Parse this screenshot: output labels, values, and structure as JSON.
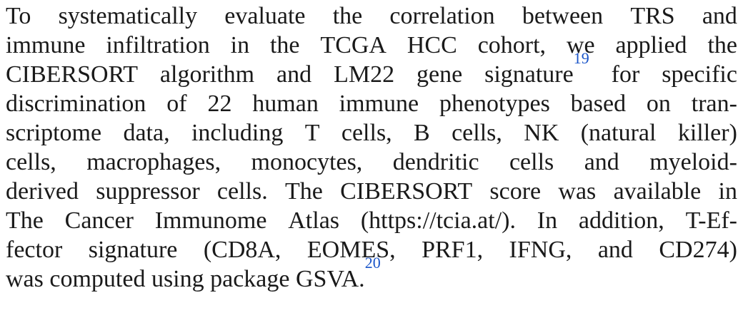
{
  "paragraph": {
    "lines": [
      {
        "words": [
          "To",
          "systematically",
          "evaluate",
          "the",
          "correlation",
          "between",
          "TRS",
          "and"
        ],
        "justify": true
      },
      {
        "words": [
          "immune",
          "infiltration",
          "in",
          "the",
          "TCGA",
          "HCC",
          "cohort,",
          "we",
          "applied",
          "the"
        ],
        "justify": true
      },
      {
        "words": [
          "CIBERSORT",
          "algorithm",
          "and",
          "LM22",
          "gene",
          "signature",
          "for",
          "specific"
        ],
        "ref_after_index": 5,
        "ref": "19",
        "justify": true
      },
      {
        "words": [
          "discrimination",
          "of",
          "22",
          "human",
          "immune",
          "phenotypes",
          "based",
          "on",
          "tran-"
        ],
        "justify": true
      },
      {
        "words": [
          "scriptome",
          "data,",
          "including",
          "T",
          "cells,",
          "B",
          "cells,",
          "NK",
          "(natural",
          "killer)"
        ],
        "justify": true
      },
      {
        "words": [
          "cells,",
          "macrophages,",
          "monocytes,",
          "dendritic",
          "cells",
          "and",
          "myeloid-"
        ],
        "justify": true
      },
      {
        "words": [
          "derived",
          "suppressor",
          "cells.",
          "The",
          "CIBERSORT",
          "score",
          "was",
          "available",
          "in"
        ],
        "justify": true
      },
      {
        "words": [
          "The",
          "Cancer",
          "Immunome",
          "Atlas",
          "(https://tcia.at/).",
          "In",
          "addition,",
          "T-Ef-"
        ],
        "justify": true
      },
      {
        "words": [
          "fector",
          "signature",
          "(CD8A,",
          "EOMES,",
          "PRF1,",
          "IFNG,",
          "and",
          "CD274)"
        ],
        "justify": true
      }
    ],
    "last_line": {
      "text": "was computed using package GSVA.",
      "ref": "20"
    }
  }
}
